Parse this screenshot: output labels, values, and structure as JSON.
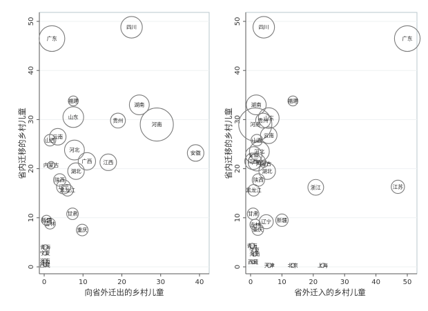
{
  "chart_data": [
    {
      "type": "scatter",
      "xlabel": "向省外迁出的乡村儿童",
      "ylabel": "省内迁移的乡村儿童",
      "xlim": [
        -1,
        41
      ],
      "ylim": [
        -1,
        51
      ],
      "xticks": [
        "0",
        "10",
        "20",
        "30",
        "40"
      ],
      "yticks": [
        "0",
        "10",
        "20",
        "30",
        "40",
        "50"
      ],
      "grid": true,
      "points": [
        {
          "label": "四川",
          "x": 22.5,
          "y": 48.8,
          "size": 2.6
        },
        {
          "label": "广东",
          "x": 2.0,
          "y": 46.5,
          "size": 3.1
        },
        {
          "label": "湖南",
          "x": 24.5,
          "y": 33.0,
          "size": 2.4
        },
        {
          "label": "福建",
          "x": 7.5,
          "y": 33.8,
          "size": 1.2
        },
        {
          "label": "山东",
          "x": 7.5,
          "y": 30.5,
          "size": 2.5
        },
        {
          "label": "贵州",
          "x": 19.0,
          "y": 29.8,
          "size": 1.8
        },
        {
          "label": "河南",
          "x": 29.0,
          "y": 29.0,
          "size": 4.0
        },
        {
          "label": "山西",
          "x": 1.5,
          "y": 25.8,
          "size": 1.4
        },
        {
          "label": "云南",
          "x": 3.5,
          "y": 26.5,
          "size": 2.0
        },
        {
          "label": "安徽",
          "x": 39.0,
          "y": 23.2,
          "size": 2.0
        },
        {
          "label": "河北",
          "x": 7.8,
          "y": 23.8,
          "size": 2.4
        },
        {
          "label": "广西",
          "x": 11.0,
          "y": 21.5,
          "size": 2.1
        },
        {
          "label": "江西",
          "x": 16.5,
          "y": 21.3,
          "size": 2.0
        },
        {
          "label": "内蒙古",
          "x": 1.8,
          "y": 20.7,
          "size": 0.9
        },
        {
          "label": "湖北",
          "x": 8.2,
          "y": 19.5,
          "size": 2.0
        },
        {
          "label": "陕西",
          "x": 4.0,
          "y": 17.7,
          "size": 1.5
        },
        {
          "label": "辽宁",
          "x": 5.0,
          "y": 16.3,
          "size": 1.7
        },
        {
          "label": "黑龙江",
          "x": 6.0,
          "y": 15.6,
          "size": 1.4
        },
        {
          "label": "甘肃",
          "x": 7.3,
          "y": 10.8,
          "size": 1.4
        },
        {
          "label": "新疆",
          "x": 0.6,
          "y": 9.5,
          "size": 1.2
        },
        {
          "label": "吉林",
          "x": 1.5,
          "y": 8.8,
          "size": 1.3
        },
        {
          "label": "重庆",
          "x": 9.8,
          "y": 7.5,
          "size": 1.4
        },
        {
          "label": "青海",
          "x": 0.3,
          "y": 4.0,
          "size": 0.6
        },
        {
          "label": "宁夏",
          "x": 0.2,
          "y": 2.8,
          "size": 0.5
        },
        {
          "label": "海南",
          "x": 0.2,
          "y": 1.2,
          "size": 0.5
        },
        {
          "label": "西藏",
          "x": 0.2,
          "y": 0.4,
          "size": 0.4
        }
      ]
    },
    {
      "type": "scatter",
      "xlabel": "省外迁入的乡村儿童",
      "ylabel": "省内迁移的乡村儿童",
      "xlim": [
        -2,
        52
      ],
      "ylim": [
        -1,
        51
      ],
      "xticks": [
        "0",
        "10",
        "20",
        "30",
        "40",
        "50"
      ],
      "yticks": [
        "0",
        "10",
        "20",
        "30",
        "40",
        "50"
      ],
      "grid": true,
      "points": [
        {
          "label": "四川",
          "x": 4.2,
          "y": 48.8,
          "size": 2.6
        },
        {
          "label": "广东",
          "x": 50.0,
          "y": 46.5,
          "size": 3.1
        },
        {
          "label": "福建",
          "x": 13.5,
          "y": 33.8,
          "size": 1.2
        },
        {
          "label": "湖南",
          "x": 1.8,
          "y": 33.0,
          "size": 2.4
        },
        {
          "label": "山东",
          "x": 5.8,
          "y": 30.3,
          "size": 2.5
        },
        {
          "label": "贵州",
          "x": 4.0,
          "y": 29.8,
          "size": 1.8
        },
        {
          "label": "河南",
          "x": 1.5,
          "y": 29.0,
          "size": 4.0
        },
        {
          "label": "云南",
          "x": 5.8,
          "y": 26.8,
          "size": 2.0
        },
        {
          "label": "山西",
          "x": 2.0,
          "y": 25.8,
          "size": 1.4
        },
        {
          "label": "河北",
          "x": 2.8,
          "y": 23.5,
          "size": 2.4
        },
        {
          "label": "安徽",
          "x": 1.0,
          "y": 22.8,
          "size": 2.0
        },
        {
          "label": "江西",
          "x": 0.8,
          "y": 21.5,
          "size": 2.0
        },
        {
          "label": "广西",
          "x": 2.0,
          "y": 21.3,
          "size": 2.1
        },
        {
          "label": "内蒙古",
          "x": 4.2,
          "y": 21.0,
          "size": 0.9
        },
        {
          "label": "湖北",
          "x": 5.3,
          "y": 19.5,
          "size": 2.0
        },
        {
          "label": "陕西",
          "x": 2.5,
          "y": 17.7,
          "size": 1.5
        },
        {
          "label": "浙江",
          "x": 20.8,
          "y": 16.2,
          "size": 1.9
        },
        {
          "label": "江苏",
          "x": 47.0,
          "y": 16.3,
          "size": 1.6
        },
        {
          "label": "黑龙江",
          "x": 1.0,
          "y": 15.6,
          "size": 1.4
        },
        {
          "label": "甘肃",
          "x": 0.8,
          "y": 10.8,
          "size": 1.4
        },
        {
          "label": "新疆",
          "x": 10.0,
          "y": 9.5,
          "size": 1.5
        },
        {
          "label": "辽宁",
          "x": 5.0,
          "y": 9.2,
          "size": 1.7
        },
        {
          "label": "吉林",
          "x": 1.5,
          "y": 8.6,
          "size": 1.3
        },
        {
          "label": "重庆",
          "x": 2.3,
          "y": 7.6,
          "size": 1.4
        },
        {
          "label": "青海",
          "x": 0.5,
          "y": 4.3,
          "size": 0.6
        },
        {
          "label": "宁夏",
          "x": 1.2,
          "y": 3.4,
          "size": 0.5
        },
        {
          "label": "海南",
          "x": 1.3,
          "y": 2.6,
          "size": 0.5
        },
        {
          "label": "西藏",
          "x": 0.8,
          "y": 1.0,
          "size": 0.4
        },
        {
          "label": "天津",
          "x": 6.0,
          "y": 0.3,
          "size": 0.5
        },
        {
          "label": "北京",
          "x": 13.5,
          "y": 0.3,
          "size": 0.5
        },
        {
          "label": "上海",
          "x": 23.0,
          "y": 0.3,
          "size": 0.5
        }
      ]
    }
  ]
}
